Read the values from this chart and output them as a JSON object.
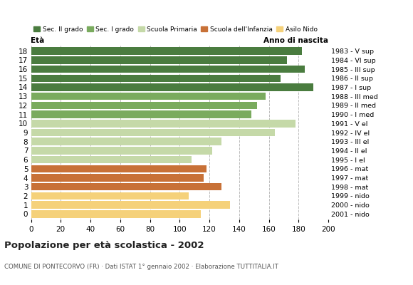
{
  "ages": [
    18,
    17,
    16,
    15,
    14,
    13,
    12,
    11,
    10,
    9,
    8,
    7,
    6,
    5,
    4,
    3,
    2,
    1,
    0
  ],
  "values": [
    182,
    172,
    184,
    168,
    190,
    158,
    152,
    148,
    178,
    164,
    128,
    122,
    108,
    118,
    116,
    128,
    106,
    134,
    114
  ],
  "anno_nascita": [
    "1983 - V sup",
    "1984 - VI sup",
    "1985 - III sup",
    "1986 - II sup",
    "1987 - I sup",
    "1988 - III med",
    "1989 - II med",
    "1990 - I med",
    "1991 - V el",
    "1992 - IV el",
    "1993 - III el",
    "1994 - II el",
    "1995 - I el",
    "1996 - mat",
    "1997 - mat",
    "1998 - mat",
    "1999 - nido",
    "2000 - nido",
    "2001 - nido"
  ],
  "colors": [
    "#4a7c3f",
    "#4a7c3f",
    "#4a7c3f",
    "#4a7c3f",
    "#4a7c3f",
    "#7aab5e",
    "#7aab5e",
    "#7aab5e",
    "#c5d9a8",
    "#c5d9a8",
    "#c5d9a8",
    "#c5d9a8",
    "#c5d9a8",
    "#c87137",
    "#c87137",
    "#c87137",
    "#f5d17a",
    "#f5d17a",
    "#f5d17a"
  ],
  "legend_labels": [
    "Sec. II grado",
    "Sec. I grado",
    "Scuola Primaria",
    "Scuola dell'Infanzia",
    "Asilo Nido"
  ],
  "legend_colors": [
    "#4a7c3f",
    "#7aab5e",
    "#c5d9a8",
    "#c87137",
    "#f5d17a"
  ],
  "title": "Popolazione per età scolastica - 2002",
  "subtitle": "COMUNE DI PONTECORVO (FR) · Dati ISTAT 1° gennaio 2002 · Elaborazione TUTTITALIA.IT",
  "label_eta": "Età",
  "label_anno": "Anno di nascita",
  "xlim": [
    0,
    200
  ],
  "xticks": [
    0,
    20,
    40,
    60,
    80,
    100,
    120,
    140,
    160,
    180,
    200
  ]
}
